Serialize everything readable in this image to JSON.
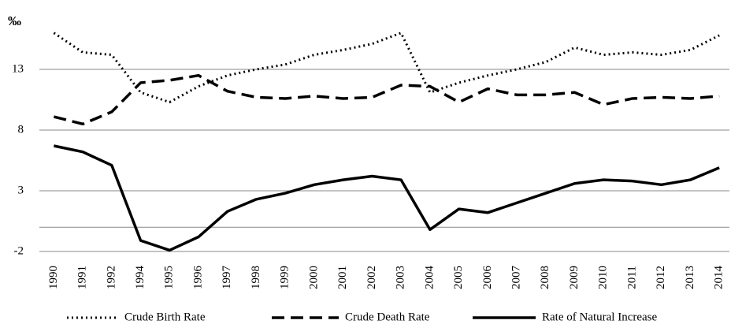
{
  "chart_data": {
    "type": "line",
    "unit_label": "‰",
    "categories": [
      "1990",
      "1991",
      "1992",
      "1994",
      "1995",
      "1996",
      "1997",
      "1998",
      "1999",
      "2000",
      "2001",
      "2002",
      "2003",
      "2004",
      "2005",
      "2006",
      "2007",
      "2008",
      "2009",
      "2010",
      "2011",
      "2012",
      "2013",
      "2014"
    ],
    "series": [
      {
        "name": "Crude Birth Rate",
        "color": "#000000",
        "style": "dotted",
        "values": [
          16.0,
          14.4,
          14.2,
          11.1,
          10.3,
          11.6,
          12.5,
          13.0,
          13.4,
          14.2,
          14.6,
          15.1,
          16.0,
          11.1,
          11.9,
          12.5,
          13.0,
          13.6,
          14.8,
          14.2,
          14.4,
          14.2,
          14.6,
          15.8
        ]
      },
      {
        "name": "Crude Death Rate",
        "color": "#000000",
        "style": "dashed",
        "values": [
          9.1,
          8.5,
          9.5,
          11.9,
          12.1,
          12.5,
          11.2,
          10.7,
          10.6,
          10.8,
          10.6,
          10.7,
          11.7,
          11.6,
          10.3,
          11.4,
          10.9,
          10.9,
          11.1,
          10.1,
          10.6,
          10.7,
          10.6,
          10.8
        ]
      },
      {
        "name": "Rate of Natural Increase",
        "color": "#000000",
        "style": "solid",
        "values": [
          6.7,
          6.2,
          5.1,
          -1.1,
          -1.9,
          -0.8,
          1.3,
          2.3,
          2.8,
          3.5,
          3.9,
          4.2,
          3.9,
          -0.2,
          1.5,
          1.2,
          2.0,
          2.8,
          3.6,
          3.9,
          3.8,
          3.5,
          3.9,
          4.9
        ]
      }
    ],
    "ylim": [
      -2,
      18
    ],
    "yticks": [
      -2,
      3,
      8,
      13
    ],
    "grid": true,
    "legend": "bottom"
  }
}
